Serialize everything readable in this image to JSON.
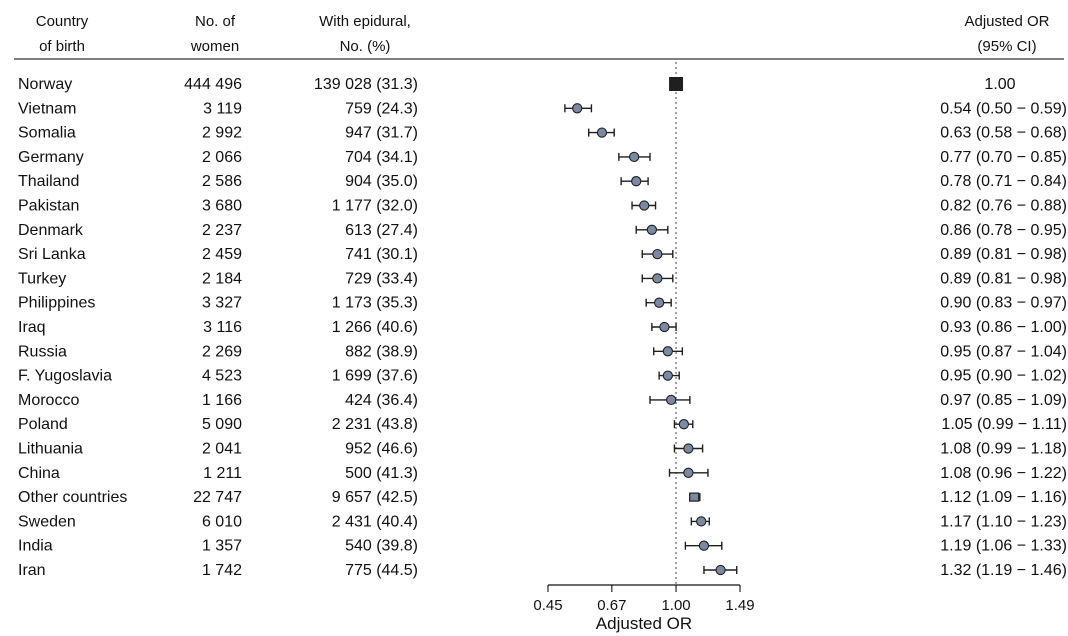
{
  "chart_data": {
    "type": "forest",
    "columns": {
      "country": [
        "Country",
        "of birth"
      ],
      "women": [
        "No. of",
        "women"
      ],
      "epidural": [
        "With epidural,",
        "No. (%)"
      ],
      "or": [
        "Adjusted OR",
        "(95% CI)"
      ]
    },
    "rows": [
      {
        "country": "Norway",
        "women": "444 496",
        "epidural": "139 028 (31.3)",
        "or_text": "1.00",
        "or": 1.0,
        "lo": 1.0,
        "hi": 1.0,
        "reference": true
      },
      {
        "country": "Vietnam",
        "women": "3 119",
        "epidural": "759 (24.3)",
        "or_text": "0.54 (0.50 − 0.59)",
        "or": 0.54,
        "lo": 0.5,
        "hi": 0.59
      },
      {
        "country": "Somalia",
        "women": "2 992",
        "epidural": "947 (31.7)",
        "or_text": "0.63 (0.58 − 0.68)",
        "or": 0.63,
        "lo": 0.58,
        "hi": 0.68
      },
      {
        "country": "Germany",
        "women": "2 066",
        "epidural": "704 (34.1)",
        "or_text": "0.77 (0.70 − 0.85)",
        "or": 0.77,
        "lo": 0.7,
        "hi": 0.85
      },
      {
        "country": "Thailand",
        "women": "2 586",
        "epidural": "904 (35.0)",
        "or_text": "0.78 (0.71 − 0.84)",
        "or": 0.78,
        "lo": 0.71,
        "hi": 0.84
      },
      {
        "country": "Pakistan",
        "women": "3 680",
        "epidural": "1 177 (32.0)",
        "or_text": "0.82 (0.76 − 0.88)",
        "or": 0.82,
        "lo": 0.76,
        "hi": 0.88
      },
      {
        "country": "Denmark",
        "women": "2 237",
        "epidural": "613 (27.4)",
        "or_text": "0.86 (0.78 − 0.95)",
        "or": 0.86,
        "lo": 0.78,
        "hi": 0.95
      },
      {
        "country": "Sri Lanka",
        "women": "2 459",
        "epidural": "741 (30.1)",
        "or_text": "0.89 (0.81 − 0.98)",
        "or": 0.89,
        "lo": 0.81,
        "hi": 0.98
      },
      {
        "country": "Turkey",
        "women": "2 184",
        "epidural": "729 (33.4)",
        "or_text": "0.89 (0.81 − 0.98)",
        "or": 0.89,
        "lo": 0.81,
        "hi": 0.98
      },
      {
        "country": "Philippines",
        "women": "3 327",
        "epidural": "1 173 (35.3)",
        "or_text": "0.90 (0.83 − 0.97)",
        "or": 0.9,
        "lo": 0.83,
        "hi": 0.97
      },
      {
        "country": "Iraq",
        "women": "3 116",
        "epidural": "1 266 (40.6)",
        "or_text": "0.93 (0.86 − 1.00)",
        "or": 0.93,
        "lo": 0.86,
        "hi": 1.0
      },
      {
        "country": "Russia",
        "women": "2 269",
        "epidural": "882 (38.9)",
        "or_text": "0.95 (0.87 − 1.04)",
        "or": 0.95,
        "lo": 0.87,
        "hi": 1.04
      },
      {
        "country": "F. Yugoslavia",
        "women": "4 523",
        "epidural": "1 699 (37.6)",
        "or_text": "0.95 (0.90 − 1.02)",
        "or": 0.95,
        "lo": 0.9,
        "hi": 1.02
      },
      {
        "country": "Morocco",
        "women": "1 166",
        "epidural": "424 (36.4)",
        "or_text": "0.97 (0.85 − 1.09)",
        "or": 0.97,
        "lo": 0.85,
        "hi": 1.09
      },
      {
        "country": "Poland",
        "women": "5 090",
        "epidural": "2 231 (43.8)",
        "or_text": "1.05 (0.99 − 1.11)",
        "or": 1.05,
        "lo": 0.99,
        "hi": 1.11
      },
      {
        "country": "Lithuania",
        "women": "2 041",
        "epidural": "952 (46.6)",
        "or_text": "1.08 (0.99 − 1.18)",
        "or": 1.08,
        "lo": 0.99,
        "hi": 1.18
      },
      {
        "country": "China",
        "women": "1 211",
        "epidural": "500 (41.3)",
        "or_text": "1.08 (0.96 − 1.22)",
        "or": 1.08,
        "lo": 0.96,
        "hi": 1.22
      },
      {
        "country": "Other countries",
        "women": "22 747",
        "epidural": "9 657 (42.5)",
        "or_text": "1.12 (1.09 − 1.16)",
        "or": 1.12,
        "lo": 1.09,
        "hi": 1.16,
        "square_marker": true
      },
      {
        "country": "Sweden",
        "women": "6 010",
        "epidural": "2 431 (40.4)",
        "or_text": "1.17 (1.10 − 1.23)",
        "or": 1.17,
        "lo": 1.1,
        "hi": 1.23
      },
      {
        "country": "India",
        "women": "1 357",
        "epidural": "540 (39.8)",
        "or_text": "1.19 (1.06 − 1.33)",
        "or": 1.19,
        "lo": 1.06,
        "hi": 1.33
      },
      {
        "country": "Iran",
        "women": "1 742",
        "epidural": "775 (44.5)",
        "or_text": "1.32 (1.19 − 1.46)",
        "or": 1.32,
        "lo": 1.19,
        "hi": 1.46
      }
    ],
    "x_axis": {
      "label": "Adjusted OR",
      "scale": "log",
      "ticks": [
        0.45,
        0.67,
        1.0,
        1.49
      ],
      "tick_labels": [
        "0.45",
        "0.67",
        "1.00",
        "1.49"
      ],
      "xlim": [
        0.45,
        1.49
      ],
      "reference_line": 1.0
    },
    "colors": {
      "marker_fill": "#7a8aa3",
      "marker_stroke": "#1f1f1f",
      "reference_marker": "#1f1f1f",
      "text": "#111111",
      "rule": "#333333"
    }
  }
}
